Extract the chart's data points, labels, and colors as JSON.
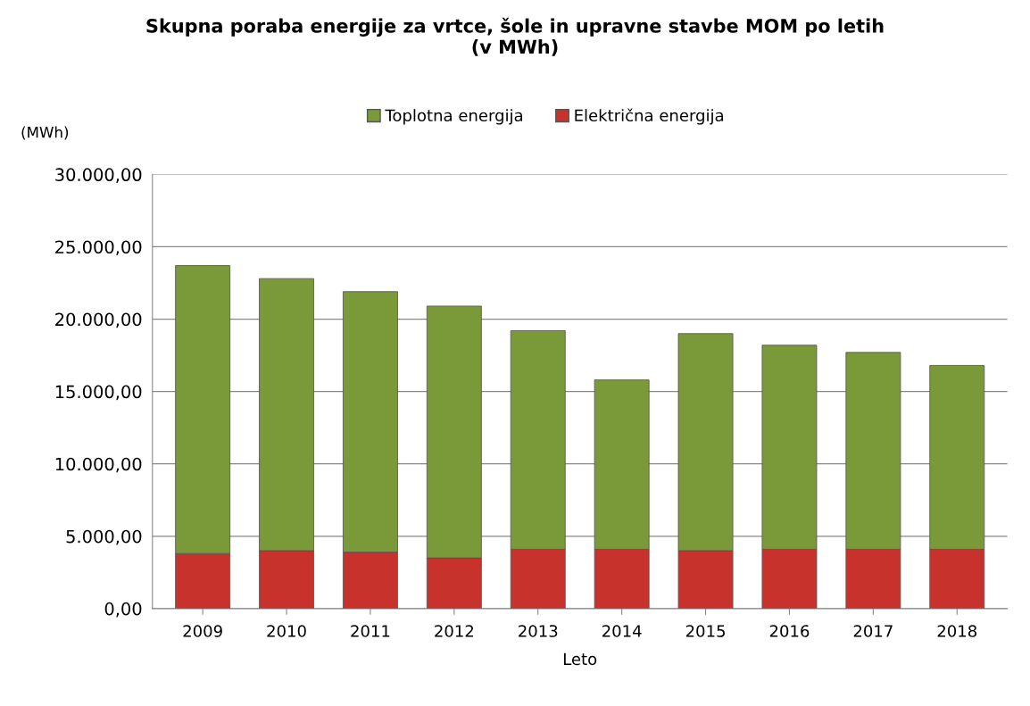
{
  "chart_data": {
    "type": "bar",
    "title": "Skupna poraba energije za vrtce, šole in upravne stavbe MOM po letih\n(v MWh)",
    "xlabel": "Leto",
    "ylabel": "(MWh)",
    "stacked": true,
    "legend": "top",
    "grid": "y",
    "categories": [
      "2009",
      "2010",
      "2011",
      "2012",
      "2013",
      "2014",
      "2015",
      "2016",
      "2017",
      "2018"
    ],
    "series": [
      {
        "name": "Električna energija",
        "color": "#c8322d",
        "values": [
          3800,
          4000,
          3900,
          3500,
          4100,
          4100,
          4000,
          4100,
          4100,
          4100
        ]
      },
      {
        "name": "Toplotna energija",
        "color": "#7a9a3a",
        "values": [
          19900,
          18800,
          18000,
          17400,
          15100,
          11700,
          15000,
          14100,
          13600,
          12700
        ]
      }
    ],
    "ylim": [
      0,
      30000
    ],
    "yticks": [
      {
        "value": 0,
        "label": "0,00"
      },
      {
        "value": 5000,
        "label": "5.000,00"
      },
      {
        "value": 10000,
        "label": "10.000,00"
      },
      {
        "value": 15000,
        "label": "15.000,00"
      },
      {
        "value": 20000,
        "label": "20.000,00"
      },
      {
        "value": 25000,
        "label": "25.000,00"
      },
      {
        "value": 30000,
        "label": "30.000,00"
      }
    ]
  }
}
